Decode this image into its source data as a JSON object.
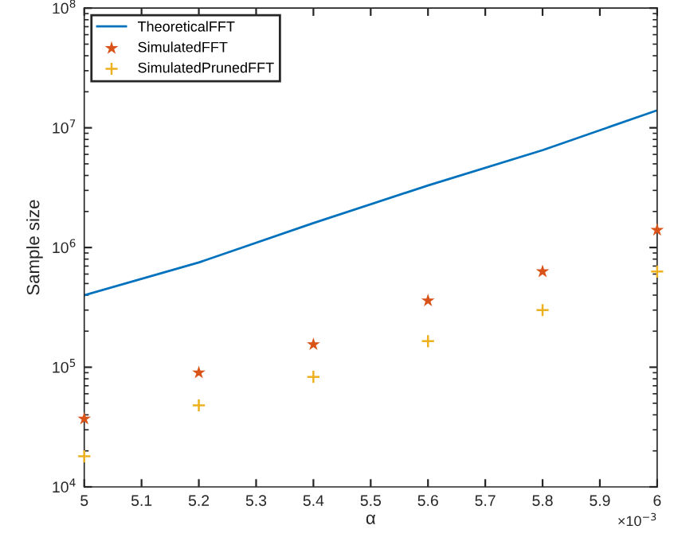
{
  "chart_data": {
    "type": "line",
    "xlabel": "α",
    "ylabel": "Sample size",
    "log": "y",
    "xlim": [
      5,
      6
    ],
    "ylim": [
      10000,
      100000000
    ],
    "xticks": [
      5,
      5.1,
      5.2,
      5.3,
      5.4,
      5.5,
      5.6,
      5.7,
      5.8,
      5.9,
      6
    ],
    "yticks": [
      {
        "value": 10000,
        "label": "10$^{4}$"
      },
      {
        "value": 100000,
        "label": "10$^{5}$"
      },
      {
        "value": 1000000,
        "label": "10$^{6}$"
      },
      {
        "value": 10000000,
        "label": "10$^{7}$"
      },
      {
        "value": 100000000,
        "label": "10$^{8}$"
      }
    ],
    "x": [
      5,
      5.2,
      5.4,
      5.6,
      5.8,
      6
    ],
    "series": [
      {
        "name": "TheoreticalFFT",
        "color": "#0072bd",
        "values": [
          400000,
          750000,
          1600000,
          3300000,
          6500000,
          14000000
        ]
      },
      {
        "name": "SimulatedFFT",
        "type": "scatter",
        "marker": "star",
        "color": "#d95319",
        "values": [
          37000,
          90000,
          155000,
          360000,
          630000,
          1400000
        ]
      },
      {
        "name": "SimulatedPrunedFFT",
        "type": "scatter",
        "marker": "cross",
        "color": "#edb120",
        "values": [
          18000,
          48000,
          83000,
          165000,
          300000,
          630000
        ]
      }
    ],
    "annotations": [
      "×10$^{−3}$"
    ],
    "grid": false,
    "legend": "top left"
  }
}
